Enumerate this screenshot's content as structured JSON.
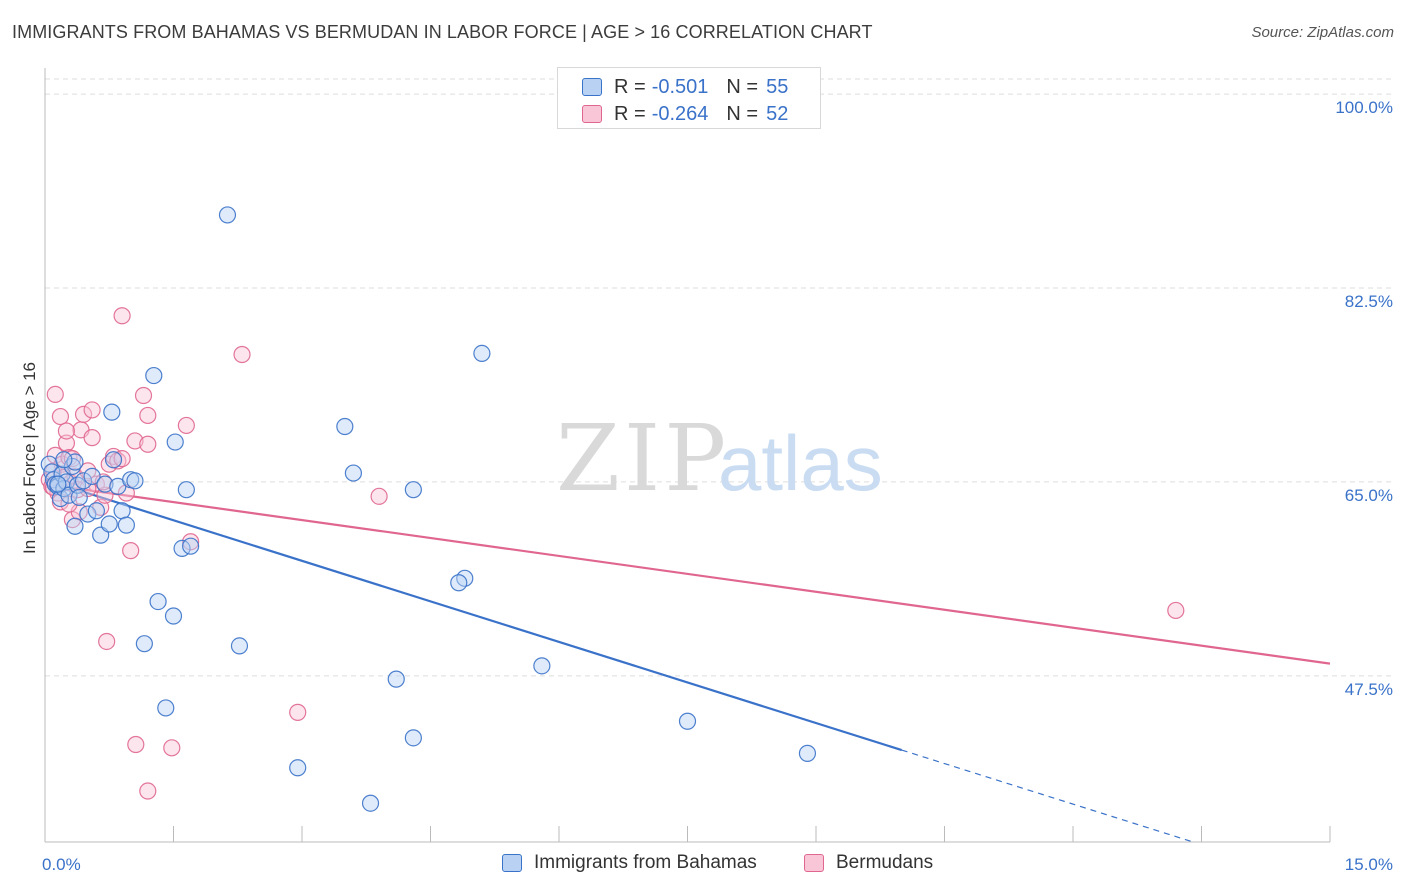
{
  "title": "IMMIGRANTS FROM BAHAMAS VS BERMUDAN IN LABOR FORCE | AGE > 16 CORRELATION CHART",
  "source": "Source: ZipAtlas.com",
  "watermark": {
    "zip": "ZIP",
    "atlas": "atlas"
  },
  "colors": {
    "blue": "#3a72c9",
    "blue_fill": "#b9d2f3",
    "pink": "#e0668f",
    "pink_fill": "#f8c6d6",
    "grid": "#dddddd"
  },
  "legend_top": {
    "rows": [
      {
        "r_label": "R =",
        "r_value": "-0.501",
        "n_label": "N =",
        "n_value": "55"
      },
      {
        "r_label": "R =",
        "r_value": "-0.264",
        "n_label": "N =",
        "n_value": "52"
      }
    ]
  },
  "legend_bottom": {
    "series1": "Immigrants from Bahamas",
    "series2": "Bermudans"
  },
  "chart_data": {
    "type": "scatter",
    "title": "IMMIGRANTS FROM BAHAMAS VS BERMUDAN IN LABOR FORCE | AGE > 16 CORRELATION CHART",
    "xlabel": "",
    "ylabel": "In Labor Force | Age > 16",
    "xlim": [
      0,
      15
    ],
    "ylim": [
      32.5,
      102
    ],
    "x_tick_labels": [
      "0.0%",
      "15.0%"
    ],
    "y_ticks": [
      47.5,
      65.0,
      82.5,
      100.0
    ],
    "y_tick_labels": [
      "47.5%",
      "65.0%",
      "82.5%",
      "100.0%"
    ],
    "grid": true,
    "series": [
      {
        "name": "Immigrants from Bahamas",
        "color": "#3a72c9",
        "points": [
          [
            0.05,
            66.6
          ],
          [
            0.08,
            65.9
          ],
          [
            0.1,
            65.2
          ],
          [
            0.12,
            64.8
          ],
          [
            0.15,
            64.6
          ],
          [
            0.18,
            63.5
          ],
          [
            0.2,
            65.7
          ],
          [
            0.22,
            64.4
          ],
          [
            0.25,
            65.0
          ],
          [
            0.28,
            63.8
          ],
          [
            0.32,
            66.4
          ],
          [
            0.35,
            66.8
          ],
          [
            0.38,
            64.7
          ],
          [
            0.4,
            63.6
          ],
          [
            0.45,
            65.1
          ],
          [
            0.5,
            62.1
          ],
          [
            0.55,
            65.5
          ],
          [
            0.6,
            62.4
          ],
          [
            0.65,
            60.2
          ],
          [
            0.7,
            64.8
          ],
          [
            0.75,
            61.2
          ],
          [
            0.8,
            67.0
          ],
          [
            0.85,
            64.6
          ],
          [
            0.9,
            62.4
          ],
          [
            0.95,
            61.1
          ],
          [
            1.0,
            65.2
          ],
          [
            1.05,
            65.1
          ],
          [
            0.35,
            61.0
          ],
          [
            0.78,
            71.3
          ],
          [
            1.27,
            74.6
          ],
          [
            1.52,
            68.6
          ],
          [
            1.65,
            64.3
          ],
          [
            1.6,
            59.0
          ],
          [
            1.7,
            59.2
          ],
          [
            1.32,
            54.2
          ],
          [
            1.5,
            52.9
          ],
          [
            1.16,
            50.4
          ],
          [
            2.13,
            89.1
          ],
          [
            3.5,
            70.0
          ],
          [
            3.6,
            65.8
          ],
          [
            4.3,
            64.3
          ],
          [
            5.1,
            76.6
          ],
          [
            4.9,
            56.3
          ],
          [
            4.83,
            55.9
          ],
          [
            2.27,
            50.2
          ],
          [
            1.41,
            44.6
          ],
          [
            4.1,
            47.2
          ],
          [
            5.8,
            48.4
          ],
          [
            7.5,
            43.4
          ],
          [
            4.3,
            41.9
          ],
          [
            2.95,
            39.2
          ],
          [
            3.8,
            36.0
          ],
          [
            8.9,
            40.5
          ],
          [
            0.15,
            64.8
          ],
          [
            0.22,
            67.0
          ]
        ],
        "trend": {
          "x0": 0.0,
          "y0": 65.2,
          "x1": 10.0,
          "y1": 40.8,
          "dash_to_x": 15.0,
          "dash_to_y": 28.6
        }
      },
      {
        "name": "Bermudans",
        "color": "#e0668f",
        "points": [
          [
            0.05,
            65.2
          ],
          [
            0.08,
            64.6
          ],
          [
            0.1,
            66.0
          ],
          [
            0.12,
            67.4
          ],
          [
            0.15,
            64.0
          ],
          [
            0.18,
            63.2
          ],
          [
            0.2,
            66.6
          ],
          [
            0.22,
            65.4
          ],
          [
            0.25,
            68.5
          ],
          [
            0.28,
            67.2
          ],
          [
            0.3,
            64.9
          ],
          [
            0.32,
            61.6
          ],
          [
            0.35,
            65.5
          ],
          [
            0.38,
            64.3
          ],
          [
            0.42,
            69.7
          ],
          [
            0.45,
            71.1
          ],
          [
            0.5,
            66.0
          ],
          [
            0.55,
            69.0
          ],
          [
            0.6,
            64.8
          ],
          [
            0.65,
            62.7
          ],
          [
            0.7,
            63.8
          ],
          [
            0.75,
            66.6
          ],
          [
            0.8,
            67.3
          ],
          [
            0.85,
            66.9
          ],
          [
            0.9,
            67.1
          ],
          [
            0.95,
            64.0
          ],
          [
            1.05,
            68.7
          ],
          [
            1.2,
            68.4
          ],
          [
            0.55,
            71.5
          ],
          [
            1.2,
            71.0
          ],
          [
            1.65,
            70.1
          ],
          [
            0.12,
            72.9
          ],
          [
            0.4,
            62.3
          ],
          [
            0.18,
            70.9
          ],
          [
            0.25,
            69.6
          ],
          [
            0.9,
            80.0
          ],
          [
            2.3,
            76.5
          ],
          [
            1.15,
            72.8
          ],
          [
            1.0,
            58.8
          ],
          [
            1.7,
            59.6
          ],
          [
            3.9,
            63.7
          ],
          [
            0.72,
            50.6
          ],
          [
            2.95,
            44.2
          ],
          [
            1.06,
            41.3
          ],
          [
            1.48,
            41.0
          ],
          [
            1.2,
            37.1
          ],
          [
            13.2,
            53.4
          ],
          [
            0.1,
            64.5
          ],
          [
            0.28,
            63.0
          ],
          [
            0.32,
            67.1
          ],
          [
            0.5,
            64.4
          ],
          [
            0.68,
            65.0
          ]
        ],
        "trend": {
          "x0": 0.0,
          "y0": 64.8,
          "x1": 15.0,
          "y1": 48.6
        }
      }
    ]
  }
}
